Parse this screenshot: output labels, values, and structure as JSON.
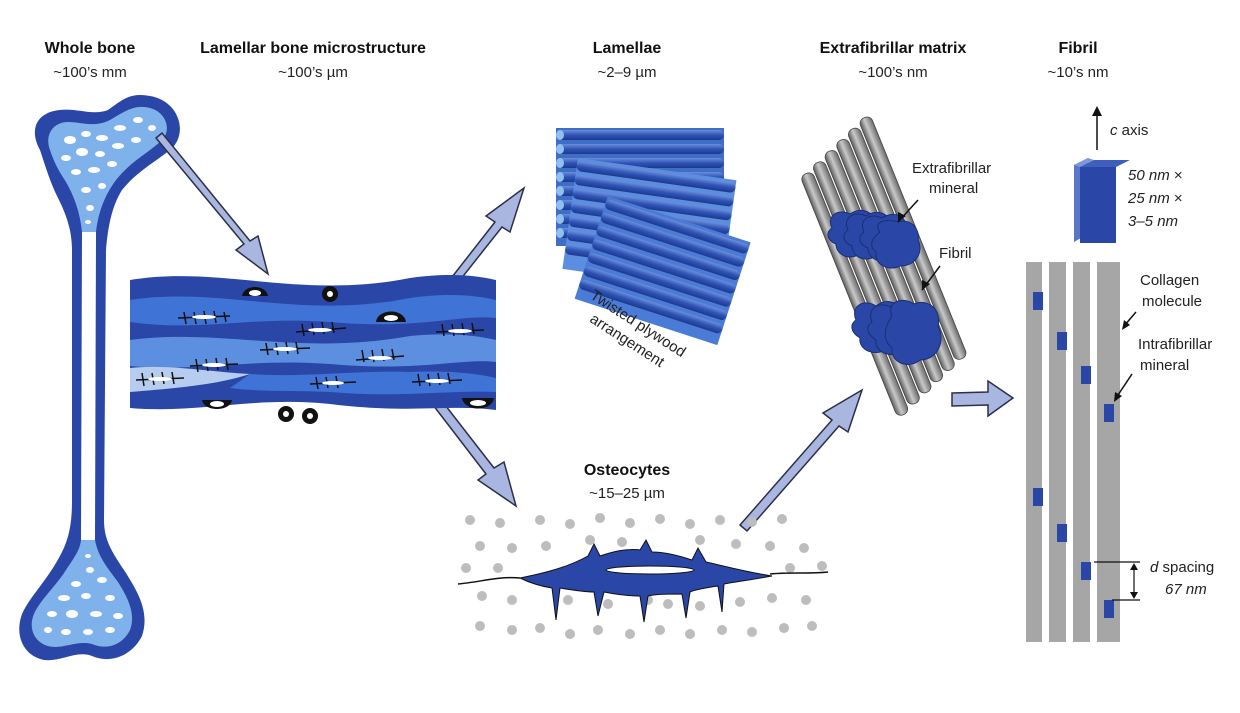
{
  "titles": {
    "whole_bone": "Whole bone",
    "whole_bone_scale": "~100’s mm",
    "lamellar": "Lamellar bone microstructure",
    "lamellar_scale": "~100’s µm",
    "lamellae": "Lamellae",
    "lamellae_scale": "~2–9 µm",
    "efm": "Extrafibrillar matrix",
    "efm_scale": "~100’s nm",
    "fibril": "Fibril",
    "fibril_scale": "~10’s nm",
    "osteocytes": "Osteocytes",
    "osteocytes_scale": "~15–25 µm"
  },
  "labels": {
    "twisted_1": "Twisted plywood",
    "twisted_2": "arrangement",
    "extrafibrillar_mineral_1": "Extrafibrillar",
    "extrafibrillar_mineral_2": "mineral",
    "fibril_label": "Fibril",
    "c_axis_letter": "c",
    "c_axis_word": " axis",
    "dim_1": "50 nm",
    "dim_1_x": " ×",
    "dim_2": "25 nm",
    "dim_2_x": " ×",
    "dim_3": "3–5 nm",
    "collagen_1": "Collagen",
    "collagen_2": "molecule",
    "intrafibrillar_1": "Intrafibrillar",
    "intrafibrillar_2": "mineral",
    "d_letter": "d",
    "d_word": " spacing",
    "d_value": "67 nm"
  },
  "colors": {
    "dark_blue": "#2a47a8",
    "mid_blue": "#3f73d6",
    "light_blue": "#7fb2ea",
    "pale_blue": "#c9dcf3",
    "arrow_fill": "#a9b6e0",
    "arrow_stroke": "#2a2f4a",
    "grey": "#a6a6a6"
  }
}
